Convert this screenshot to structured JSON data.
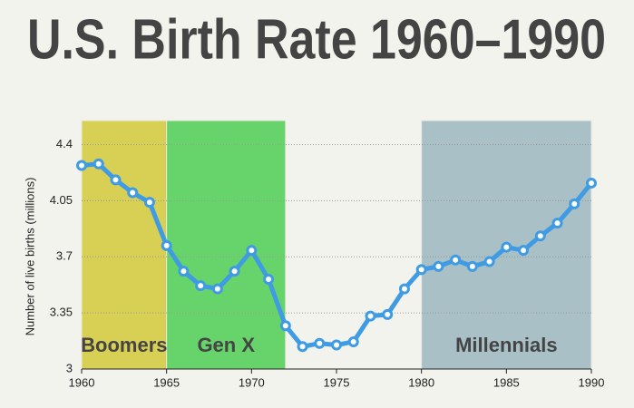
{
  "chart_data": {
    "type": "line",
    "title": "U.S. Birth Rate 1960–1990",
    "y_label": "Number of live births (millions)",
    "x": [
      1960,
      1961,
      1962,
      1963,
      1964,
      1965,
      1966,
      1967,
      1968,
      1969,
      1970,
      1971,
      1972,
      1973,
      1974,
      1975,
      1976,
      1977,
      1978,
      1979,
      1980,
      1981,
      1982,
      1983,
      1984,
      1985,
      1986,
      1987,
      1988,
      1989,
      1990
    ],
    "values": [
      4.27,
      4.28,
      4.18,
      4.1,
      4.04,
      3.77,
      3.61,
      3.52,
      3.5,
      3.61,
      3.74,
      3.56,
      3.27,
      3.14,
      3.16,
      3.15,
      3.17,
      3.33,
      3.34,
      3.5,
      3.62,
      3.64,
      3.68,
      3.64,
      3.67,
      3.76,
      3.74,
      3.83,
      3.91,
      4.03,
      4.16
    ],
    "color": "#3f9be3",
    "xlim": [
      1960,
      1990
    ],
    "xticks": [
      1960,
      1965,
      1970,
      1975,
      1980,
      1985,
      1990
    ],
    "ylim": [
      3,
      4.55
    ],
    "yticks": [
      3,
      3.35,
      3.7,
      4.05,
      4.4
    ],
    "grid": true,
    "bands": [
      {
        "label": "Boomers",
        "start": 1960,
        "end": 1965,
        "color": "#d8cf55"
      },
      {
        "label": "Gen X",
        "start": 1965,
        "end": 1972,
        "color": "#67d46b"
      },
      {
        "label": "Millennials",
        "start": 1980,
        "end": 1990,
        "color": "#a9c0c7"
      }
    ]
  }
}
